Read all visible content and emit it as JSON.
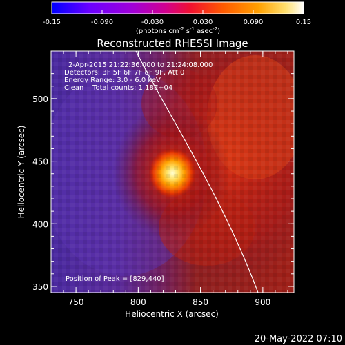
{
  "colorbar": {
    "tick_labels": [
      "-0.15",
      "-0.090",
      "-0.030",
      "0.030",
      "0.090",
      "0.15"
    ],
    "tick_values": [
      -0.15,
      -0.09,
      -0.03,
      0.03,
      0.09,
      0.15
    ],
    "range": [
      -0.15,
      0.15
    ],
    "units_text": "(photons cm",
    "units_sup1": "-2",
    "units_mid1": " s",
    "units_sup2": "-1",
    "units_mid2": " asec",
    "units_sup3": "-2",
    "units_end": ")",
    "colors": [
      "#0000ff",
      "#7a00ff",
      "#b000d0",
      "#e00060",
      "#ff2000",
      "#ff7000",
      "#ffb000",
      "#ffe060",
      "#ffffff"
    ]
  },
  "image": {
    "title": "Reconstructed RHESSI Image",
    "info_lines": [
      "2-Apr-2015 21:22:36.000 to 21:24:08.000",
      "Detectors: 3F 5F 6F 7F 8F 9F, Att 0",
      "Energy Range: 3.0 - 6.0 keV",
      "Clean    Total counts: 1.18E+04"
    ],
    "peak_label": "Position of Peak = [829,440]",
    "peak": [
      829,
      440
    ],
    "x_label": "Heliocentric X (arcsec)",
    "y_label": "Heliocentric Y (arcsec)",
    "x_ticks": [
      "750",
      "800",
      "850",
      "900"
    ],
    "x_tick_values": [
      750,
      800,
      850,
      900
    ],
    "y_ticks": [
      "500",
      "450",
      "400",
      "350"
    ],
    "y_tick_values": [
      500,
      450,
      400,
      350
    ],
    "x_range": [
      730,
      925
    ],
    "y_range": [
      345,
      538
    ]
  },
  "timestamp": "20-May-2022 07:10"
}
